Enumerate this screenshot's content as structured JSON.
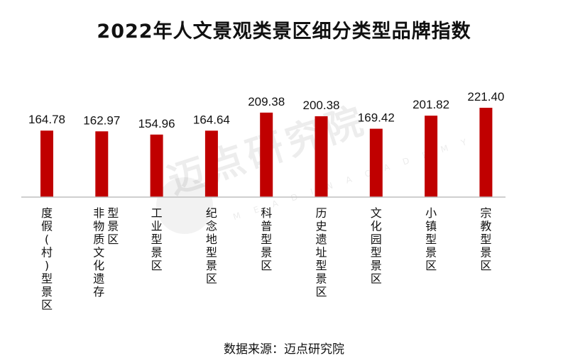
{
  "chart_data": {
    "type": "bar",
    "title": "2022年人文景观类景区细分类型品牌指数",
    "categories": [
      "度假(村)型景区",
      "非物质文化遗存型景区",
      "工业型景区",
      "纪念地型景区",
      "科普型景区",
      "历史遗址型景区",
      "文化园型景区",
      "小镇型景区",
      "宗教型景区"
    ],
    "category_lines": [
      [
        "度假(村)型景区"
      ],
      [
        "非物质文化遗存",
        "型景区"
      ],
      [
        "工业型景区"
      ],
      [
        "纪念地型景区"
      ],
      [
        "科普型景区"
      ],
      [
        "历史遗址型景区"
      ],
      [
        "文化园型景区"
      ],
      [
        "小镇型景区"
      ],
      [
        "宗教型景区"
      ]
    ],
    "values": [
      164.78,
      162.97,
      154.96,
      164.64,
      209.38,
      200.38,
      169.42,
      201.82,
      221.4
    ],
    "value_labels": [
      "164.78",
      "162.97",
      "154.96",
      "164.64",
      "209.38",
      "200.38",
      "169.42",
      "201.82",
      "221.40"
    ],
    "ylim": [
      0,
      240
    ],
    "bar_color": "#c00000",
    "grid": false,
    "legend": "none"
  },
  "watermark": {
    "text": "迈点研究院",
    "sub": "M E A D I N   A C A D E M Y"
  },
  "source": "数据来源：迈点研究院"
}
